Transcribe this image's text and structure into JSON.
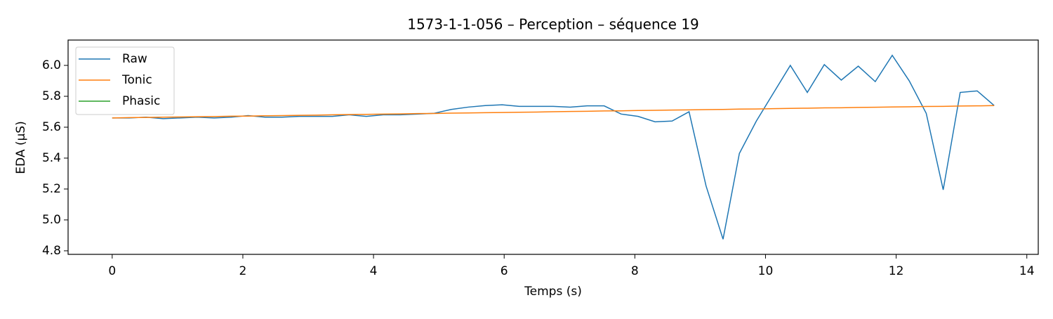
{
  "chart_data": {
    "type": "line",
    "title": "1573-1-1-056 – Perception – séquence 19",
    "xlabel": "Temps (s)",
    "ylabel": "EDA (µS)",
    "x": [
      0,
      0.26,
      0.52,
      0.78,
      1.04,
      1.3,
      1.56,
      1.82,
      2.08,
      2.34,
      2.6,
      2.86,
      3.12,
      3.37,
      3.63,
      3.89,
      4.15,
      4.41,
      4.67,
      4.93,
      5.19,
      5.45,
      5.71,
      5.97,
      6.23,
      6.49,
      6.75,
      7.01,
      7.27,
      7.53,
      7.79,
      8.05,
      8.31,
      8.57,
      8.83,
      9.09,
      9.35,
      9.6,
      9.86,
      10.12,
      10.38,
      10.64,
      10.9,
      11.16,
      11.42,
      11.68,
      11.94,
      12.2,
      12.46,
      12.72,
      12.98,
      13.24,
      13.5
    ],
    "series": [
      {
        "name": "Raw",
        "color": "#1f77b4",
        "values": [
          5.66,
          5.66,
          5.665,
          5.655,
          5.66,
          5.665,
          5.66,
          5.665,
          5.675,
          5.665,
          5.665,
          5.67,
          5.67,
          5.67,
          5.68,
          5.67,
          5.68,
          5.68,
          5.685,
          5.69,
          5.715,
          5.73,
          5.74,
          5.745,
          5.735,
          5.735,
          5.735,
          5.73,
          5.738,
          5.738,
          5.685,
          5.67,
          5.635,
          5.64,
          5.7,
          5.22,
          4.875,
          5.43,
          5.64,
          5.82,
          6.0,
          5.825,
          6.005,
          5.905,
          5.995,
          5.895,
          6.065,
          5.9,
          5.69,
          5.195,
          5.825,
          5.835,
          5.74
        ]
      },
      {
        "name": "Tonic",
        "color": "#ff7f0e",
        "values": [
          5.66,
          5.662,
          5.663,
          5.665,
          5.666,
          5.668,
          5.669,
          5.671,
          5.672,
          5.674,
          5.675,
          5.677,
          5.678,
          5.68,
          5.682,
          5.683,
          5.685,
          5.686,
          5.688,
          5.689,
          5.691,
          5.692,
          5.694,
          5.695,
          5.697,
          5.698,
          5.7,
          5.702,
          5.703,
          5.705,
          5.706,
          5.708,
          5.709,
          5.711,
          5.712,
          5.714,
          5.715,
          5.717,
          5.718,
          5.72,
          5.722,
          5.723,
          5.725,
          5.726,
          5.728,
          5.729,
          5.731,
          5.732,
          5.734,
          5.735,
          5.737,
          5.738,
          5.74
        ]
      },
      {
        "name": "Phasic",
        "color": "#2ca02c",
        "values": [
          null,
          null,
          null,
          null,
          null,
          null,
          null,
          null,
          null,
          null,
          null,
          null,
          null,
          null,
          null,
          null,
          null,
          null,
          null,
          null,
          null,
          null,
          null,
          null,
          null,
          null,
          null,
          null,
          null,
          null,
          null,
          null,
          null,
          null,
          null,
          null,
          null,
          null,
          null,
          null,
          null,
          null,
          null,
          null,
          null,
          null,
          null,
          null,
          null,
          null,
          null,
          null,
          null
        ]
      }
    ],
    "xlim": [
      -0.675,
      14.175
    ],
    "xticks": [
      0,
      2,
      4,
      6,
      8,
      10,
      12,
      14
    ],
    "ylim": [
      4.777,
      6.164
    ],
    "yticks": [
      {
        "value": 4.8,
        "label": "4.8"
      },
      {
        "value": 5.0,
        "label": "5.0"
      },
      {
        "value": 5.2,
        "label": "5.2"
      },
      {
        "value": 5.4,
        "label": "5.4"
      },
      {
        "value": 5.6,
        "label": "5.6"
      },
      {
        "value": 5.8,
        "label": "5.8"
      },
      {
        "value": 6.0,
        "label": "6.0"
      }
    ],
    "legend": "upper left",
    "grid": false
  }
}
